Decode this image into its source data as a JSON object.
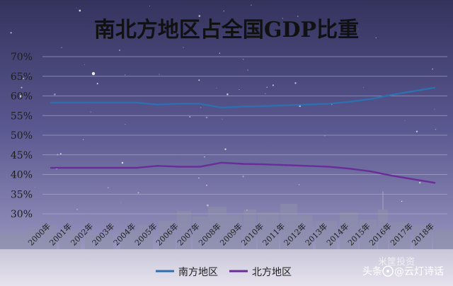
{
  "chart_data": {
    "type": "line",
    "title": "南北方地区占全国GDP比重",
    "xlabel": "",
    "ylabel": "",
    "categories": [
      "2000年",
      "2001年",
      "2002年",
      "2003年",
      "2004年",
      "2005年",
      "2006年",
      "2007年",
      "2008年",
      "2009年",
      "2010年",
      "2011年",
      "2012年",
      "2013年",
      "2014年",
      "2015年",
      "2016年",
      "2017年",
      "2018年"
    ],
    "series": [
      {
        "name": "南方地区",
        "values": [
          58.3,
          58.3,
          58.3,
          58.3,
          58.3,
          57.8,
          58.0,
          58.0,
          57.0,
          57.3,
          57.4,
          57.6,
          57.8,
          58.0,
          58.5,
          59.2,
          60.3,
          61.2,
          62.1
        ],
        "color": "#2e6fb0"
      },
      {
        "name": "北方地区",
        "values": [
          41.7,
          41.7,
          41.7,
          41.7,
          41.7,
          42.2,
          42.0,
          42.0,
          43.0,
          42.7,
          42.6,
          42.4,
          42.2,
          42.0,
          41.5,
          40.8,
          39.7,
          38.8,
          37.9
        ],
        "color": "#6a2c97"
      }
    ],
    "ylim": [
      30,
      70
    ],
    "yticks": [
      "30%",
      "35%",
      "40%",
      "45%",
      "50%",
      "55%",
      "60%",
      "65%",
      "70%"
    ],
    "grid": true,
    "legend_position": "bottom-center"
  },
  "watermark": {
    "toutiao": "头条",
    "account": "@云灯诗话",
    "faint": "米筐投资"
  },
  "colors": {
    "sky_top": "#3b3a63",
    "sky_bottom": "#8a86b3",
    "grid": "#a6a3c6",
    "axis_text": "#222222"
  }
}
